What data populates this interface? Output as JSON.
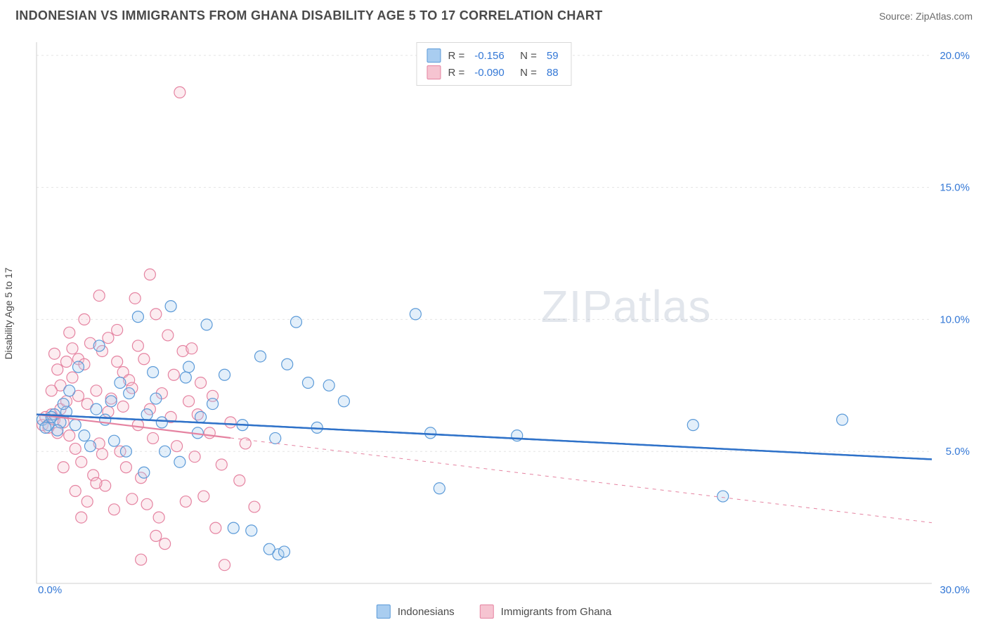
{
  "title": "INDONESIAN VS IMMIGRANTS FROM GHANA DISABILITY AGE 5 TO 17 CORRELATION CHART",
  "source": "Source: ZipAtlas.com",
  "watermark_a": "ZIP",
  "watermark_b": "atlas",
  "ylabel": "Disability Age 5 to 17",
  "chart": {
    "type": "scatter",
    "background_color": "#ffffff",
    "grid_color": "#e4e4e4",
    "axis_color": "#cfcfcf",
    "xlim": [
      0,
      30
    ],
    "ylim": [
      0,
      20.5
    ],
    "x_ticks": [
      0,
      30
    ],
    "x_tick_labels": [
      "0.0%",
      "30.0%"
    ],
    "y_ticks": [
      5,
      10,
      15,
      20
    ],
    "y_tick_labels": [
      "5.0%",
      "10.0%",
      "15.0%",
      "20.0%"
    ],
    "tick_label_color": "#3478d6",
    "tick_label_fontsize": 15,
    "marker_radius": 8,
    "marker_stroke_width": 1.2,
    "marker_fill_opacity": 0.32,
    "series": [
      {
        "name": "Indonesians",
        "color_fill": "#a9cdf0",
        "color_stroke": "#5b9ad8",
        "R": "-0.156",
        "N": "59",
        "trend": {
          "x1": 0,
          "y1": 6.4,
          "x2": 30,
          "y2": 4.7,
          "color": "#2f72c9",
          "width": 2.4,
          "solid_until_x": 8.0
        },
        "points": [
          [
            0.2,
            6.2
          ],
          [
            0.4,
            6.0
          ],
          [
            0.6,
            6.4
          ],
          [
            0.3,
            5.9
          ],
          [
            0.8,
            6.1
          ],
          [
            0.5,
            6.3
          ],
          [
            0.7,
            5.8
          ],
          [
            1.0,
            6.5
          ],
          [
            1.3,
            6.0
          ],
          [
            1.6,
            5.6
          ],
          [
            2.1,
            9.0
          ],
          [
            2.3,
            6.2
          ],
          [
            2.8,
            7.6
          ],
          [
            3.0,
            5.0
          ],
          [
            3.4,
            10.1
          ],
          [
            3.6,
            4.2
          ],
          [
            3.9,
            8.0
          ],
          [
            4.2,
            6.1
          ],
          [
            4.5,
            10.5
          ],
          [
            4.8,
            4.6
          ],
          [
            5.1,
            8.2
          ],
          [
            5.4,
            5.7
          ],
          [
            5.7,
            9.8
          ],
          [
            5.9,
            6.8
          ],
          [
            6.3,
            7.9
          ],
          [
            6.6,
            2.1
          ],
          [
            6.9,
            6.0
          ],
          [
            7.2,
            2.0
          ],
          [
            7.5,
            8.6
          ],
          [
            7.8,
            1.3
          ],
          [
            8.0,
            5.5
          ],
          [
            8.1,
            1.1
          ],
          [
            8.3,
            1.2
          ],
          [
            8.4,
            8.3
          ],
          [
            8.7,
            9.9
          ],
          [
            9.1,
            7.6
          ],
          [
            9.4,
            5.9
          ],
          [
            9.8,
            7.5
          ],
          [
            10.3,
            6.9
          ],
          [
            12.7,
            10.2
          ],
          [
            13.2,
            5.7
          ],
          [
            13.5,
            3.6
          ],
          [
            16.1,
            5.6
          ],
          [
            22.0,
            6.0
          ],
          [
            23.0,
            3.3
          ],
          [
            27.0,
            6.2
          ],
          [
            0.9,
            6.8
          ],
          [
            1.1,
            7.3
          ],
          [
            1.4,
            8.2
          ],
          [
            1.8,
            5.2
          ],
          [
            2.0,
            6.6
          ],
          [
            2.5,
            6.9
          ],
          [
            2.6,
            5.4
          ],
          [
            3.1,
            7.2
          ],
          [
            3.7,
            6.4
          ],
          [
            4.0,
            7.0
          ],
          [
            4.3,
            5.0
          ],
          [
            5.0,
            7.8
          ],
          [
            5.5,
            6.3
          ]
        ]
      },
      {
        "name": "Immigrants from Ghana",
        "color_fill": "#f6c4d1",
        "color_stroke": "#e583a1",
        "R": "-0.090",
        "N": "88",
        "trend": {
          "x1": 0,
          "y1": 6.4,
          "x2": 30,
          "y2": 2.3,
          "color": "#e583a1",
          "width": 2.2,
          "solid_until_x": 6.5
        },
        "points": [
          [
            0.2,
            6.0
          ],
          [
            0.3,
            6.3
          ],
          [
            0.4,
            5.9
          ],
          [
            0.5,
            6.4
          ],
          [
            0.6,
            6.2
          ],
          [
            0.7,
            5.7
          ],
          [
            0.8,
            6.6
          ],
          [
            0.9,
            6.1
          ],
          [
            1.0,
            6.9
          ],
          [
            1.1,
            5.6
          ],
          [
            1.2,
            7.8
          ],
          [
            1.3,
            5.1
          ],
          [
            1.4,
            8.5
          ],
          [
            1.5,
            4.6
          ],
          [
            1.6,
            8.3
          ],
          [
            1.7,
            6.8
          ],
          [
            1.8,
            9.1
          ],
          [
            1.9,
            4.1
          ],
          [
            2.0,
            7.3
          ],
          [
            2.1,
            5.3
          ],
          [
            2.2,
            8.8
          ],
          [
            2.3,
            3.7
          ],
          [
            2.4,
            6.5
          ],
          [
            2.5,
            7.0
          ],
          [
            2.6,
            2.8
          ],
          [
            2.7,
            9.6
          ],
          [
            2.8,
            5.0
          ],
          [
            2.9,
            8.0
          ],
          [
            3.0,
            4.4
          ],
          [
            3.1,
            7.7
          ],
          [
            3.2,
            3.2
          ],
          [
            3.3,
            10.8
          ],
          [
            3.4,
            6.0
          ],
          [
            3.5,
            4.0
          ],
          [
            3.6,
            8.5
          ],
          [
            3.7,
            3.0
          ],
          [
            3.8,
            11.7
          ],
          [
            3.9,
            5.5
          ],
          [
            4.0,
            10.2
          ],
          [
            4.1,
            2.5
          ],
          [
            4.2,
            7.2
          ],
          [
            4.3,
            1.5
          ],
          [
            4.5,
            6.3
          ],
          [
            4.7,
            5.2
          ],
          [
            4.8,
            18.6
          ],
          [
            4.9,
            8.8
          ],
          [
            5.0,
            3.1
          ],
          [
            5.1,
            6.9
          ],
          [
            5.3,
            4.8
          ],
          [
            5.5,
            7.6
          ],
          [
            5.6,
            3.3
          ],
          [
            5.8,
            5.7
          ],
          [
            6.0,
            2.1
          ],
          [
            6.2,
            4.5
          ],
          [
            6.3,
            0.7
          ],
          [
            6.5,
            6.1
          ],
          [
            6.8,
            3.9
          ],
          [
            7.0,
            5.3
          ],
          [
            7.3,
            2.9
          ],
          [
            2.0,
            3.8
          ],
          [
            2.4,
            9.3
          ],
          [
            1.5,
            2.5
          ],
          [
            1.3,
            3.5
          ],
          [
            0.9,
            4.4
          ],
          [
            1.7,
            3.1
          ],
          [
            2.2,
            4.9
          ],
          [
            2.9,
            6.7
          ],
          [
            3.4,
            9.0
          ],
          [
            1.0,
            8.4
          ],
          [
            1.6,
            10.0
          ],
          [
            1.2,
            8.9
          ],
          [
            0.8,
            7.5
          ],
          [
            0.7,
            8.1
          ],
          [
            0.5,
            7.3
          ],
          [
            0.6,
            8.7
          ],
          [
            1.1,
            9.5
          ],
          [
            1.4,
            7.1
          ],
          [
            2.1,
            10.9
          ],
          [
            2.7,
            8.4
          ],
          [
            3.2,
            7.4
          ],
          [
            3.8,
            6.6
          ],
          [
            4.4,
            9.4
          ],
          [
            4.6,
            7.9
          ],
          [
            5.2,
            8.9
          ],
          [
            5.4,
            6.4
          ],
          [
            5.9,
            7.1
          ],
          [
            3.5,
            0.9
          ],
          [
            4.0,
            1.8
          ]
        ]
      }
    ]
  },
  "bottom_legend": [
    {
      "label": "Indonesians",
      "fill": "#a9cdf0",
      "stroke": "#5b9ad8"
    },
    {
      "label": "Immigrants from Ghana",
      "fill": "#f6c4d1",
      "stroke": "#e583a1"
    }
  ]
}
